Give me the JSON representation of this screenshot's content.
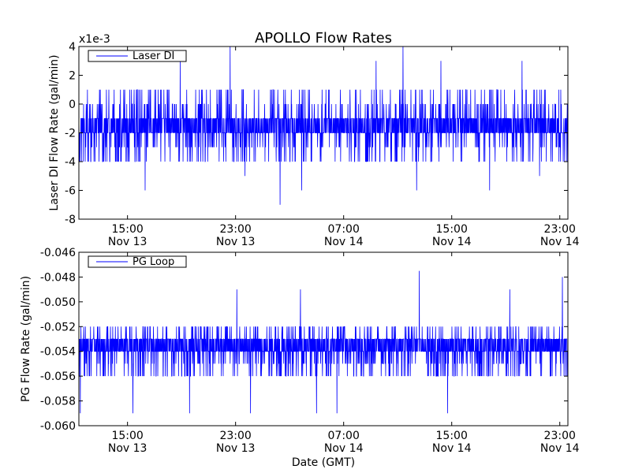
{
  "figure": {
    "title": "APOLLO Flow Rates",
    "shared_xlabel": "Date (GMT)"
  },
  "chart_data": [
    {
      "type": "line",
      "ylabel": "Laser DI Flow Rate (gal/min)",
      "offset_label": "x1e-3",
      "legend": {
        "label": "Laser DI",
        "placement": "top-left",
        "color": "#0000ff"
      },
      "ylim": [
        -8,
        4
      ],
      "y_ticks": [
        4,
        2,
        0,
        -2,
        -4,
        -6,
        -8
      ],
      "y_tick_labels": [
        "4",
        "2",
        "0",
        "-2",
        "-4",
        "-6",
        "-8"
      ],
      "x_ticks": [
        {
          "time": "15:00",
          "date": "Nov 13"
        },
        {
          "time": "23:00",
          "date": "Nov 13"
        },
        {
          "time": "07:00",
          "date": "Nov 14"
        },
        {
          "time": "15:00",
          "date": "Nov 14"
        },
        {
          "time": "23:00",
          "date": "Nov 14"
        }
      ],
      "x_tick_hours": [
        15,
        23,
        31,
        39,
        47
      ],
      "xlim_hours": [
        11.4,
        47.6
      ],
      "series": [
        {
          "name": "Laser DI",
          "color": "#0000ff",
          "baseline_levels": [
            -1,
            -2
          ],
          "level_range": [
            -4,
            1
          ],
          "spikes": [
            {
              "hour": 16.3,
              "value": -6
            },
            {
              "hour": 18.9,
              "value": 3
            },
            {
              "hour": 22.6,
              "value": 4
            },
            {
              "hour": 23.7,
              "value": -5
            },
            {
              "hour": 26.3,
              "value": -7
            },
            {
              "hour": 27.9,
              "value": -6
            },
            {
              "hour": 33.4,
              "value": 3
            },
            {
              "hour": 36.4,
              "value": -6
            },
            {
              "hour": 35.4,
              "value": 4
            },
            {
              "hour": 38.2,
              "value": 3
            },
            {
              "hour": 41.8,
              "value": -6
            },
            {
              "hour": 44.2,
              "value": 3
            },
            {
              "hour": 45.5,
              "value": -5
            }
          ]
        }
      ]
    },
    {
      "type": "line",
      "ylabel": "PG Flow Rate (gal/min)",
      "xlabel": "Date (GMT)",
      "legend": {
        "label": "PG Loop",
        "placement": "top-left",
        "color": "#0000ff"
      },
      "ylim": [
        -0.06,
        -0.046
      ],
      "y_ticks": [
        -0.046,
        -0.048,
        -0.05,
        -0.052,
        -0.054,
        -0.056,
        -0.058,
        -0.06
      ],
      "y_tick_labels": [
        "-0.046",
        "-0.048",
        "-0.050",
        "-0.052",
        "-0.054",
        "-0.056",
        "-0.058",
        "-0.060"
      ],
      "x_ticks": [
        {
          "time": "15:00",
          "date": "Nov 13"
        },
        {
          "time": "23:00",
          "date": "Nov 13"
        },
        {
          "time": "07:00",
          "date": "Nov 14"
        },
        {
          "time": "15:00",
          "date": "Nov 14"
        },
        {
          "time": "23:00",
          "date": "Nov 14"
        }
      ],
      "x_tick_hours": [
        15,
        23,
        31,
        39,
        47
      ],
      "xlim_hours": [
        11.4,
        47.6
      ],
      "series": [
        {
          "name": "PG Loop",
          "color": "#0000ff",
          "baseline_levels": [
            -0.053,
            -0.054
          ],
          "level_range": [
            -0.056,
            -0.052
          ],
          "spikes": [
            {
              "hour": 11.5,
              "value": -0.059
            },
            {
              "hour": 15.4,
              "value": -0.059
            },
            {
              "hour": 19.6,
              "value": -0.059
            },
            {
              "hour": 23.1,
              "value": -0.049
            },
            {
              "hour": 24.1,
              "value": -0.059
            },
            {
              "hour": 27.8,
              "value": -0.049
            },
            {
              "hour": 29.0,
              "value": -0.059
            },
            {
              "hour": 30.5,
              "value": -0.059
            },
            {
              "hour": 36.6,
              "value": -0.0475
            },
            {
              "hour": 38.7,
              "value": -0.059
            },
            {
              "hour": 43.3,
              "value": -0.049
            },
            {
              "hour": 47.2,
              "value": -0.048
            }
          ]
        }
      ]
    }
  ]
}
